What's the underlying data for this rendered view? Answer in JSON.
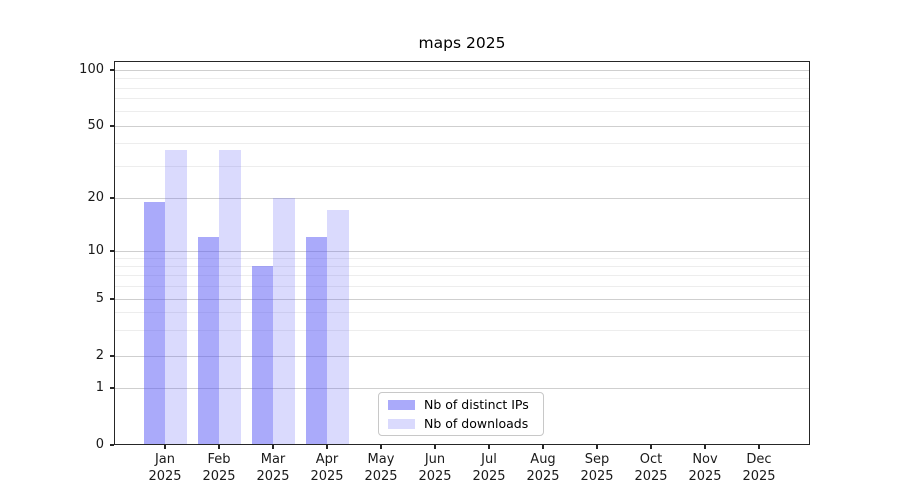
{
  "title": "maps 2025",
  "chart_data": {
    "type": "bar",
    "title": "maps 2025",
    "scale": "symlog",
    "grid": true,
    "categories": [
      "Jan",
      "Feb",
      "Mar",
      "Apr",
      "May",
      "Jun",
      "Jul",
      "Aug",
      "Sep",
      "Oct",
      "Nov",
      "Dec"
    ],
    "category_year": "2025",
    "series": [
      {
        "name": "Nb of distinct IPs",
        "color": "#a9a9f7",
        "values": [
          19,
          12,
          8,
          12,
          0,
          0,
          0,
          0,
          0,
          0,
          0,
          0
        ]
      },
      {
        "name": "Nb of downloads",
        "color": "#dcdcfa",
        "values": [
          37,
          37,
          20,
          17,
          0,
          0,
          0,
          0,
          0,
          0,
          0,
          0
        ]
      }
    ],
    "yticks": [
      0,
      1,
      2,
      5,
      10,
      20,
      50,
      100
    ],
    "minor_yticks": [
      3,
      4,
      6,
      7,
      8,
      9,
      30,
      40,
      60,
      70,
      80,
      90
    ],
    "ylim": [
      0,
      113
    ],
    "legend_position": "lower center",
    "legend_entries": [
      "Nb of distinct IPs",
      "Nb of downloads"
    ]
  },
  "colors": {
    "bar_ips_rgba": "rgba(85,85,245,0.50)",
    "bar_downloads_rgba": "rgba(85,85,245,0.22)",
    "grid_major": "#cfcfcf",
    "grid_minor": "#ededed",
    "axis": "#262626"
  }
}
